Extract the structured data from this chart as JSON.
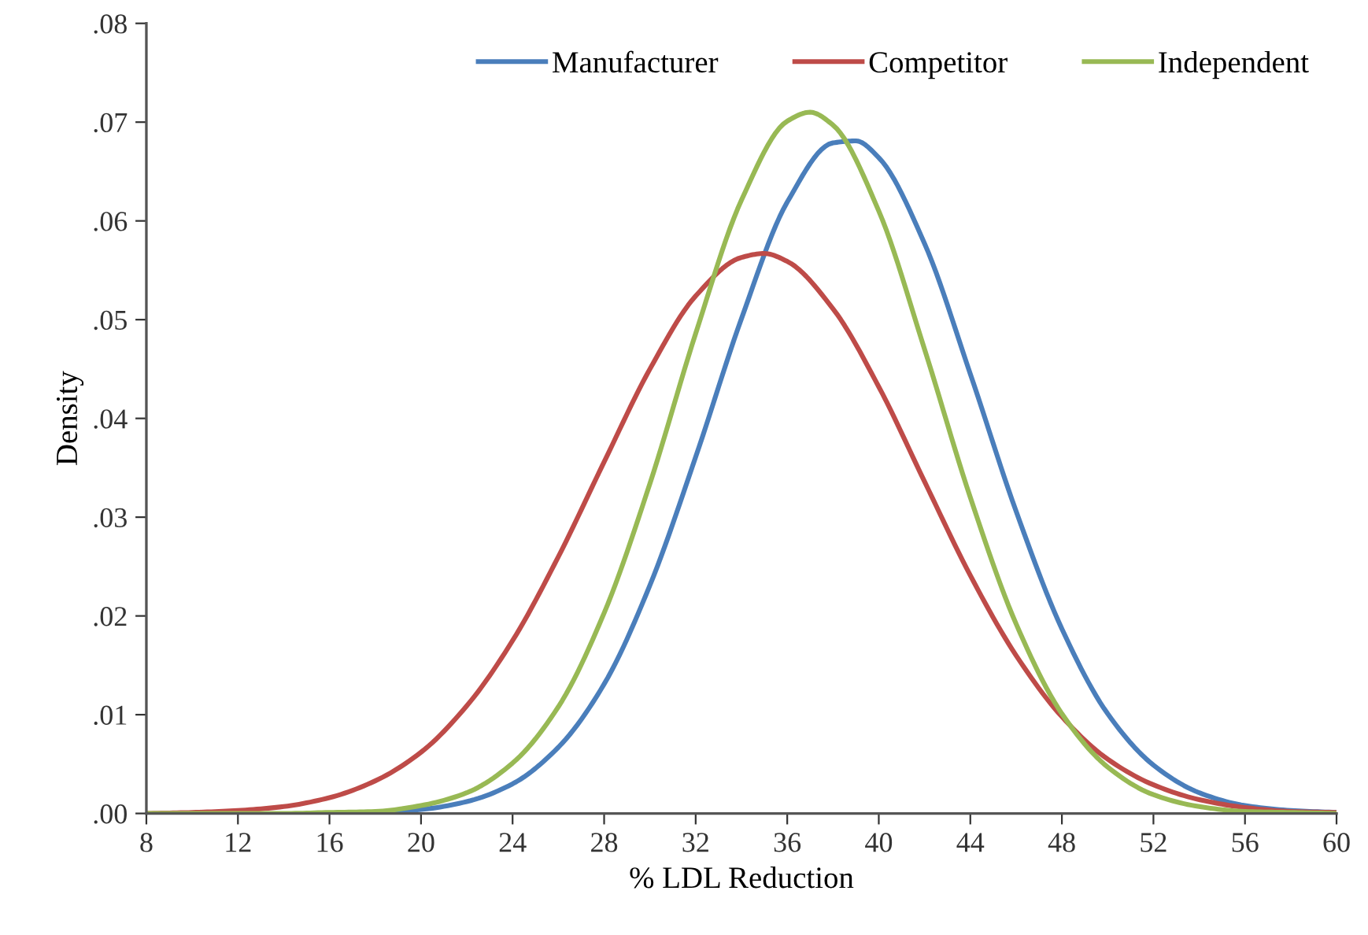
{
  "chart_data": {
    "type": "line",
    "xlabel": "% LDL Reduction",
    "ylabel": "Density",
    "xlim": [
      8,
      60
    ],
    "ylim": [
      0,
      0.08
    ],
    "xticks": [
      8,
      12,
      16,
      20,
      24,
      28,
      32,
      36,
      40,
      44,
      48,
      52,
      56,
      60
    ],
    "yticks": [
      {
        "value": 0,
        "label": ".00"
      },
      {
        "value": 0.01,
        "label": ".01"
      },
      {
        "value": 0.02,
        "label": ".02"
      },
      {
        "value": 0.03,
        "label": ".03"
      },
      {
        "value": 0.04,
        "label": ".04"
      },
      {
        "value": 0.05,
        "label": ".05"
      },
      {
        "value": 0.06,
        "label": ".06"
      },
      {
        "value": 0.07,
        "label": ".07"
      },
      {
        "value": 0.08,
        "label": ".08"
      }
    ],
    "grid": false,
    "legend": "top",
    "marker": "none",
    "line_style": "solid",
    "series": [
      {
        "name": "Manufacturer",
        "color": "#4a7ebb",
        "x": [
          16,
          18,
          20,
          22,
          24,
          26,
          28,
          30,
          32,
          34,
          36,
          38,
          39,
          40,
          42,
          44,
          46,
          48,
          50,
          52,
          54,
          56,
          58,
          60
        ],
        "values": [
          0.0,
          0.0001,
          0.0004,
          0.0012,
          0.003,
          0.0067,
          0.0131,
          0.0231,
          0.0361,
          0.0501,
          0.0619,
          0.0679,
          0.0681,
          0.0664,
          0.0577,
          0.0445,
          0.0306,
          0.0187,
          0.0101,
          0.0049,
          0.0021,
          0.0008,
          0.0003,
          0.0001
        ]
      },
      {
        "name": "Competitor",
        "color": "#be4b48",
        "x": [
          8,
          10,
          12,
          14,
          16,
          18,
          20,
          22,
          24,
          26,
          28,
          30,
          32,
          34,
          35,
          36,
          38,
          40,
          42,
          44,
          46,
          48,
          50,
          52,
          54,
          56,
          58,
          60
        ],
        "values": [
          0.0,
          0.0001,
          0.0003,
          0.0007,
          0.0016,
          0.0033,
          0.0062,
          0.0109,
          0.0175,
          0.026,
          0.0356,
          0.045,
          0.0524,
          0.0563,
          0.0567,
          0.0559,
          0.0511,
          0.0432,
          0.0336,
          0.0241,
          0.016,
          0.0098,
          0.0055,
          0.0029,
          0.0014,
          0.0006,
          0.0002,
          0.0001
        ]
      },
      {
        "name": "Independent",
        "color": "#98b954",
        "x": [
          8,
          10,
          12,
          14,
          16,
          18,
          20,
          22,
          24,
          26,
          28,
          30,
          32,
          34,
          36,
          37,
          38,
          40,
          42,
          44,
          46,
          48,
          50,
          52,
          54,
          56,
          58,
          60
        ],
        "values": [
          0.0,
          0.0,
          0.0,
          0.0,
          0.0001,
          0.0002,
          0.0008,
          0.0021,
          0.0051,
          0.0108,
          0.0203,
          0.0334,
          0.0486,
          0.0621,
          0.0701,
          0.071,
          0.0697,
          0.061,
          0.047,
          0.032,
          0.0192,
          0.0101,
          0.0047,
          0.0019,
          0.0007,
          0.0002,
          0.0001,
          0.0
        ]
      }
    ]
  }
}
